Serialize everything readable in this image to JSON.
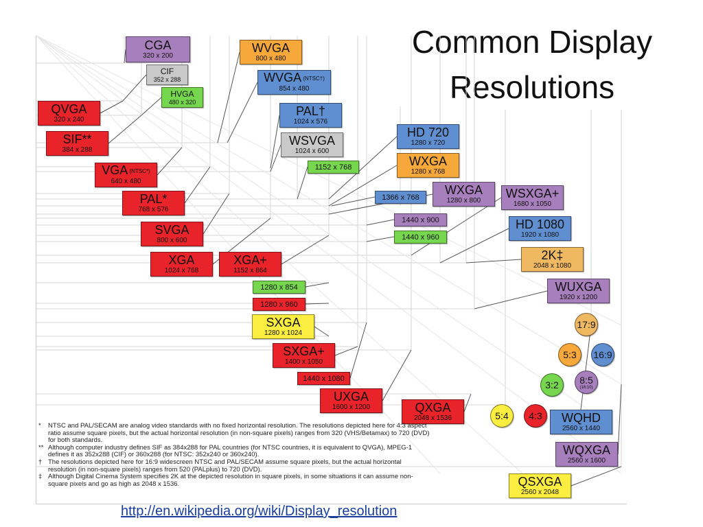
{
  "slide": {
    "title_line1": "Common Display",
    "title_line2": "Resolutions",
    "link": "http://en.wikipedia.org/wiki/Display_resolution"
  },
  "colors": {
    "red": "#e8232a",
    "orange": "#f7a83b",
    "purple": "#a77fbd",
    "gray": "#c9c9c9",
    "green": "#76d64d",
    "blue": "#5f8fd0",
    "yellow": "#fbee41",
    "gold": "#efb962",
    "line": "#555555"
  },
  "standards": [
    {
      "id": "cga",
      "name": "CGA",
      "res": "320 x 200",
      "color": "purple"
    },
    {
      "id": "cif",
      "name": "CIF",
      "res": "352 x 288",
      "color": "gray",
      "tiny": true
    },
    {
      "id": "hvga",
      "name": "HVGA",
      "res": "480 x 320",
      "color": "green",
      "tiny": true
    },
    {
      "id": "qvga",
      "name": "QVGA",
      "res": "320 x 240",
      "color": "red"
    },
    {
      "id": "sif",
      "name": "SIF**",
      "res": "384 x 288",
      "color": "red"
    },
    {
      "id": "vga",
      "name": "VGA",
      "note": "(NTSC*)",
      "res": "640 x 480",
      "color": "red"
    },
    {
      "id": "pal_star",
      "name": "PAL*",
      "res": "768 x 576",
      "color": "red"
    },
    {
      "id": "svga",
      "name": "SVGA",
      "res": "800 x 600",
      "color": "red"
    },
    {
      "id": "xga",
      "name": "XGA",
      "res": "1024 x 768",
      "color": "red"
    },
    {
      "id": "xgaplus",
      "name": "XGA+",
      "res": "1152 x 864",
      "color": "red"
    },
    {
      "id": "wvga",
      "name": "WVGA",
      "res": "800 x 480",
      "color": "orange"
    },
    {
      "id": "wvga_ntsc",
      "name": "WVGA",
      "note": "(NTSC†)",
      "res": "854 x 480",
      "color": "blue"
    },
    {
      "id": "pal_dagger",
      "name": "PAL†",
      "res": "1024 x 576",
      "color": "blue"
    },
    {
      "id": "wsvga",
      "name": "WSVGA",
      "res": "1024 x 600",
      "color": "gray"
    },
    {
      "id": "r1152x768",
      "name": "",
      "res": "1152 x 768",
      "color": "green"
    },
    {
      "id": "hd720",
      "name": "HD 720",
      "res": "1280 x 720",
      "color": "blue"
    },
    {
      "id": "wxga_o",
      "name": "WXGA",
      "res": "1280 x 768",
      "color": "orange"
    },
    {
      "id": "r1366x768",
      "name": "",
      "res": "1366 x 768",
      "color": "blue"
    },
    {
      "id": "wxga_p",
      "name": "WXGA",
      "res": "1280 x 800",
      "color": "purple"
    },
    {
      "id": "r1440x900",
      "name": "",
      "res": "1440 x 900",
      "color": "purple"
    },
    {
      "id": "r1440x960",
      "name": "",
      "res": "1440 x 960",
      "color": "green"
    },
    {
      "id": "wsxgaplus",
      "name": "WSXGA+",
      "res": "1680 x 1050",
      "color": "purple"
    },
    {
      "id": "hd1080",
      "name": "HD 1080",
      "res": "1920 x 1080",
      "color": "blue"
    },
    {
      "id": "twok",
      "name": "2K‡",
      "res": "2048 x 1080",
      "color": "gold"
    },
    {
      "id": "wuxga",
      "name": "WUXGA",
      "res": "1920 x 1200",
      "color": "purple"
    },
    {
      "id": "r1280x854",
      "name": "",
      "res": "1280 x 854",
      "color": "green"
    },
    {
      "id": "r1280x960",
      "name": "",
      "res": "1280 x 960",
      "color": "red"
    },
    {
      "id": "sxga",
      "name": "SXGA",
      "res": "1280 x 1024",
      "color": "yellow"
    },
    {
      "id": "sxgaplus",
      "name": "SXGA+",
      "res": "1400 x 1050",
      "color": "red"
    },
    {
      "id": "r1440x1080",
      "name": "",
      "res": "1440 x 1080",
      "color": "red"
    },
    {
      "id": "uxga",
      "name": "UXGA",
      "res": "1600 x 1200",
      "color": "red"
    },
    {
      "id": "qxga",
      "name": "QXGA",
      "res": "2048 x 1536",
      "color": "red"
    },
    {
      "id": "wqhd",
      "name": "WQHD",
      "res": "2560 x 1440",
      "color": "blue"
    },
    {
      "id": "wqxga",
      "name": "WQXGA",
      "res": "2560 x 1600",
      "color": "purple"
    },
    {
      "id": "qsxga",
      "name": "QSXGA",
      "res": "2560 x 2048",
      "color": "yellow"
    }
  ],
  "aspect_ratios": [
    {
      "id": "r17_9",
      "label": "17:9",
      "color": "gold"
    },
    {
      "id": "r5_3",
      "label": "5:3",
      "color": "orange"
    },
    {
      "id": "r16_9",
      "label": "16:9",
      "color": "blue"
    },
    {
      "id": "r3_2",
      "label": "3:2",
      "color": "green"
    },
    {
      "id": "r8_5",
      "label": "8:5",
      "sub": "(16:10)",
      "color": "purple"
    },
    {
      "id": "r5_4",
      "label": "5:4",
      "color": "yellow"
    },
    {
      "id": "r4_3",
      "label": "4:3",
      "color": "red"
    }
  ],
  "footnotes": [
    {
      "mark": "*",
      "text": "NTSC and PAL/SECAM are analog video standards with no fixed horizontal resolution. The resolutions depicted here for 4:3 aspect ratio assume square pixels, but the actual horizontal resolution (in non-square pixels) ranges from 320 (VHS/Betamax) to 720 (DVD) for both standards."
    },
    {
      "mark": "**",
      "text": "Although computer industry defines SIF as 384x288 for PAL countries (for NTSC countries, it is equivalent to QVGA), MPEG-1 defines it as 352x288 (CIF) or 360x288 (for NTSC: 352x240 or 360x240)."
    },
    {
      "mark": "†",
      "text": "The resolutions depicted here for 16:9 widescreen NTSC and PAL/SECAM assume square pixels, but the actual horizontal resolution (in non-square pixels) ranges from 520 (PALplus) to 720 (DVD)."
    },
    {
      "mark": "‡",
      "text": "Although Digital Cinema System specifies 2K at the depicted resolution in square pixels, in some situations it can assume non-square pixels and go as high as 2048 x 1536."
    }
  ]
}
